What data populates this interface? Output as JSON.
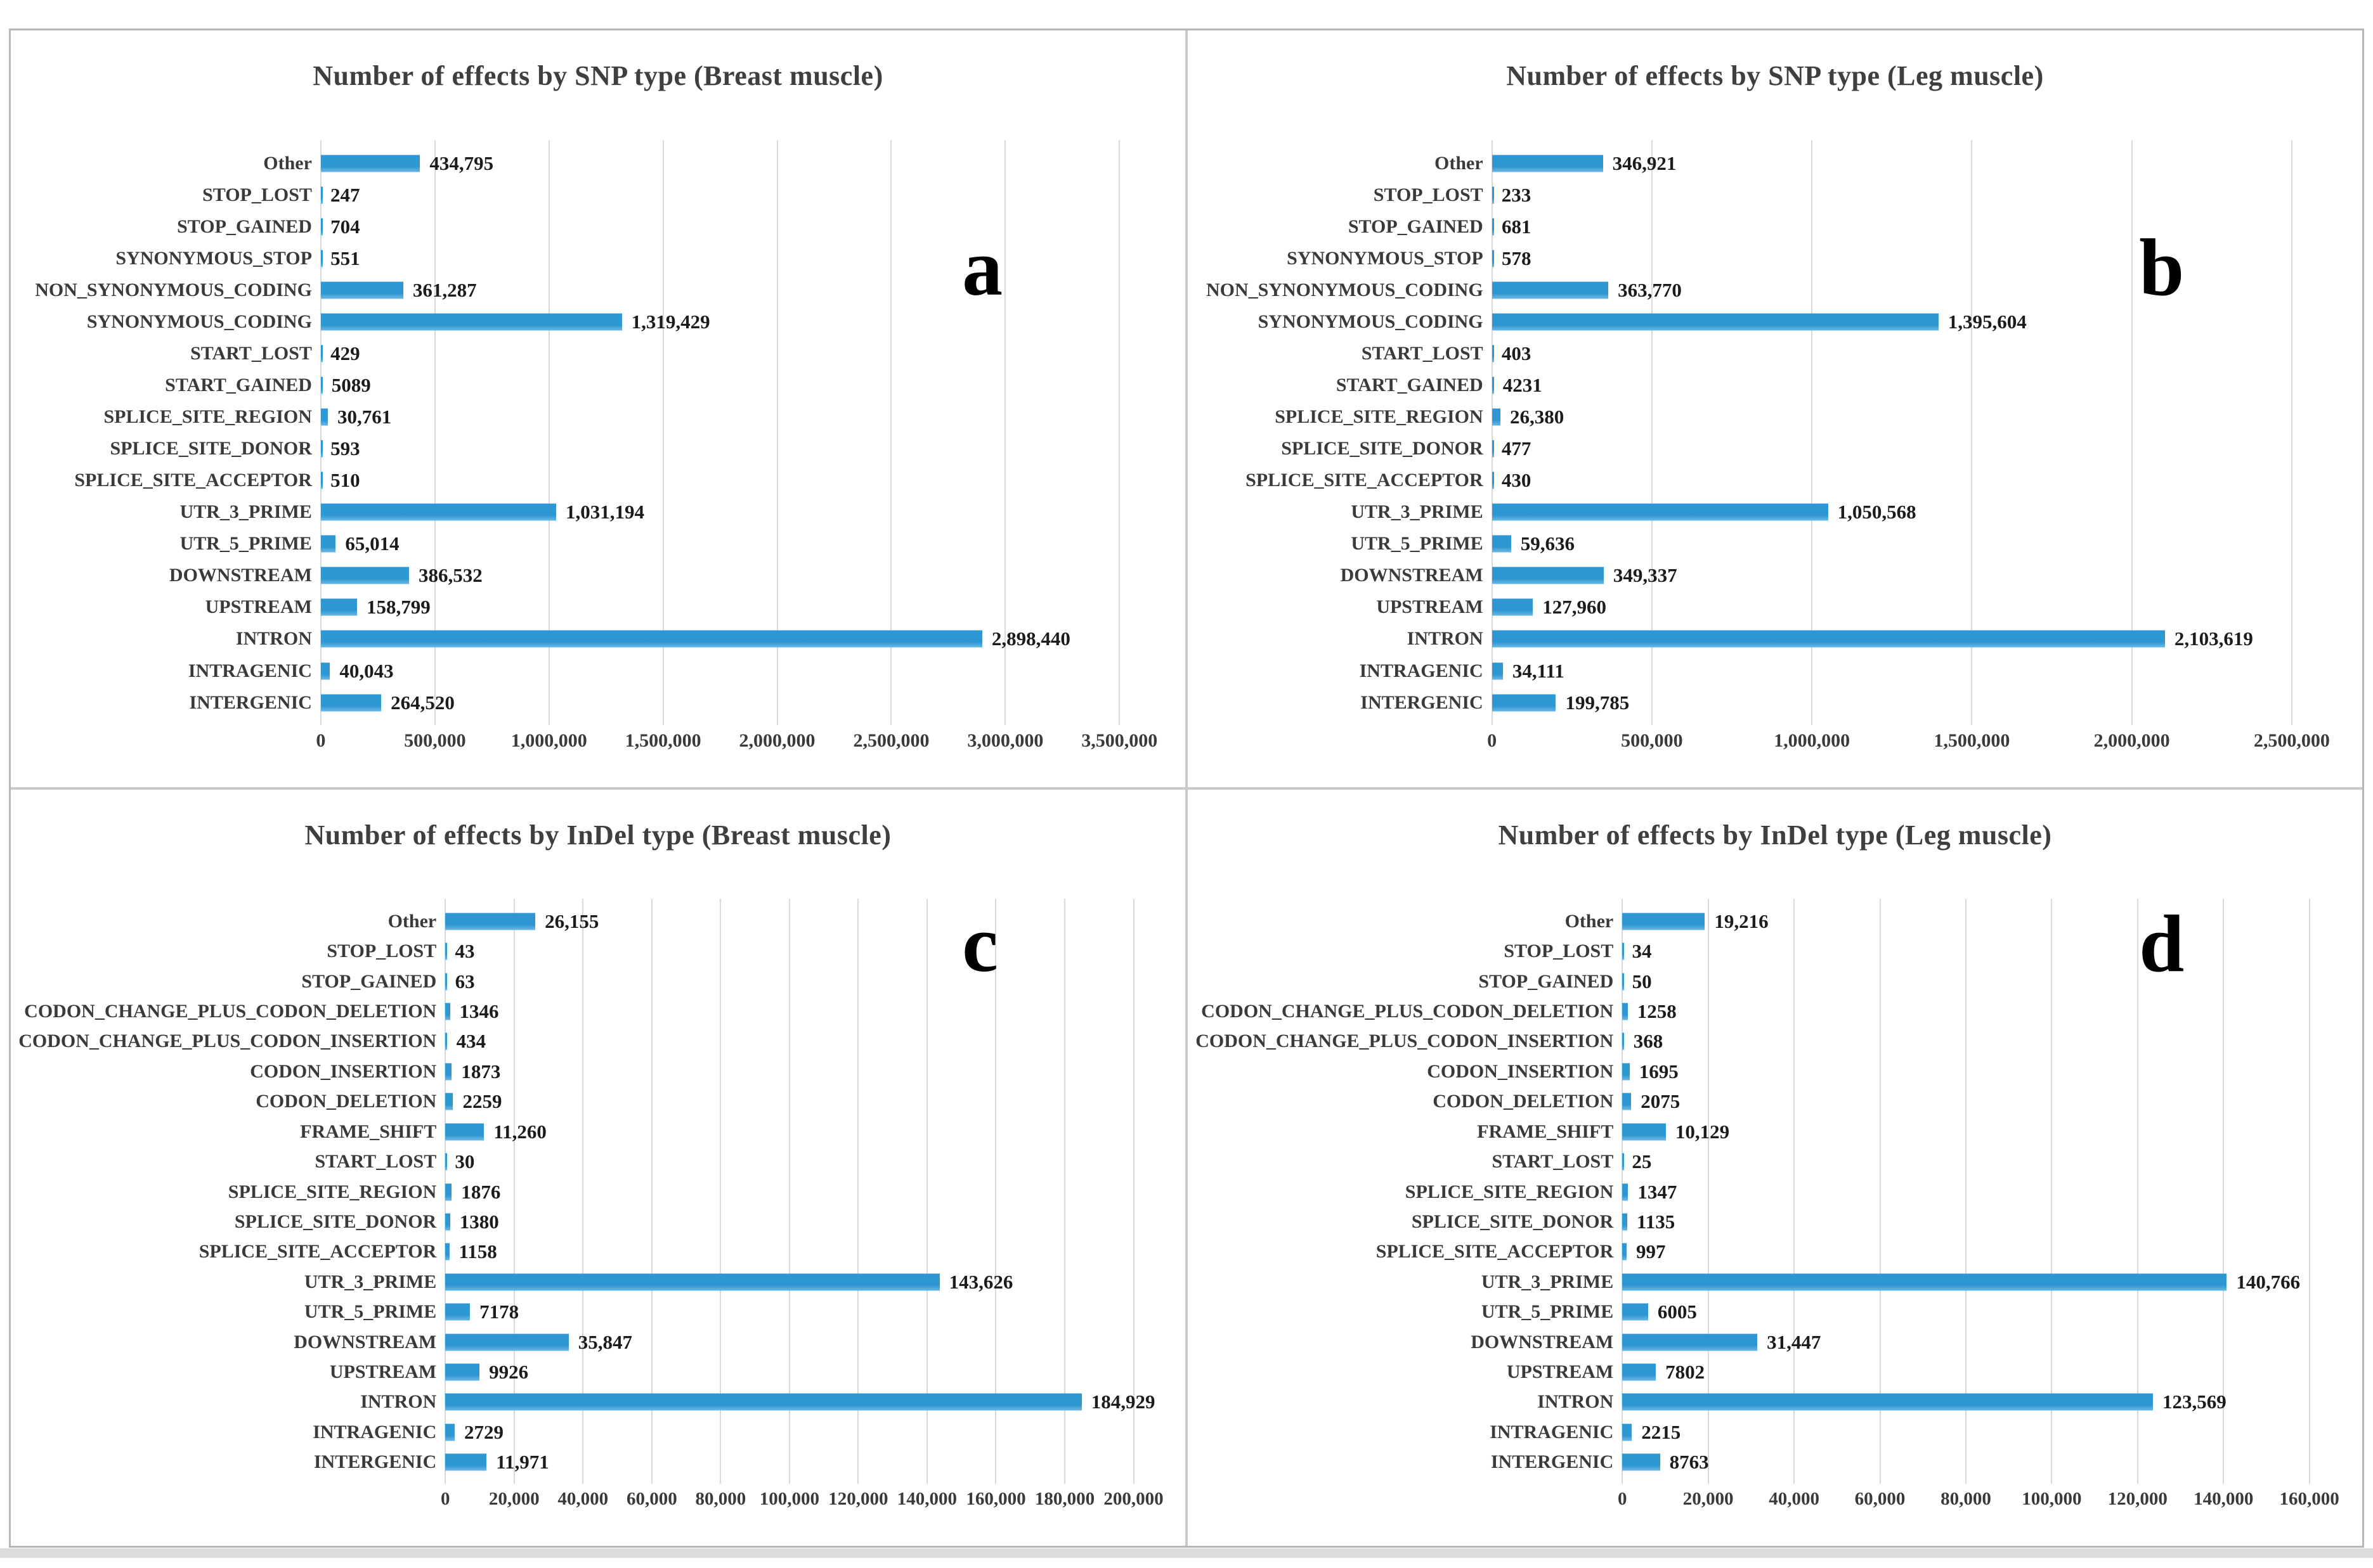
{
  "colors": {
    "bar": "#2E96D2",
    "gridline": "#D9D9D9",
    "title_text": "#3F3F3F",
    "value_text": "#1C1C1C"
  },
  "chart_data": [
    {
      "type": "bar",
      "orientation": "horizontal",
      "grid": true,
      "title": "Number of effects by SNP type (Breast muscle)",
      "letter": "a",
      "xlim": [
        0,
        3500000
      ],
      "axis": {
        "max": 3500000,
        "zero_pct": 26.4,
        "max_pct": 94.4,
        "ticks": [
          {
            "label": "0",
            "value": 0
          },
          {
            "label": "500,000",
            "value": 500000
          },
          {
            "label": "1,000,000",
            "value": 1000000
          },
          {
            "label": "1,500,000",
            "value": 1500000
          },
          {
            "label": "2,000,000",
            "value": 2000000
          },
          {
            "label": "2,500,000",
            "value": 2500000
          },
          {
            "label": "3,000,000",
            "value": 3000000
          },
          {
            "label": "3,500,000",
            "value": 3500000
          }
        ]
      },
      "rows": [
        {
          "label": "Other",
          "value": 434795,
          "display": "434,795"
        },
        {
          "label": "STOP_LOST",
          "value": 247,
          "display": "247"
        },
        {
          "label": "STOP_GAINED",
          "value": 704,
          "display": "704"
        },
        {
          "label": "SYNONYMOUS_STOP",
          "value": 551,
          "display": "551"
        },
        {
          "label": "NON_SYNONYMOUS_CODING",
          "value": 361287,
          "display": "361,287"
        },
        {
          "label": "SYNONYMOUS_CODING",
          "value": 1319429,
          "display": "1,319,429"
        },
        {
          "label": "START_LOST",
          "value": 429,
          "display": "429"
        },
        {
          "label": "START_GAINED",
          "value": 5089,
          "display": "5089"
        },
        {
          "label": "SPLICE_SITE_REGION",
          "value": 30761,
          "display": "30,761"
        },
        {
          "label": "SPLICE_SITE_DONOR",
          "value": 593,
          "display": "593"
        },
        {
          "label": "SPLICE_SITE_ACCEPTOR",
          "value": 510,
          "display": "510"
        },
        {
          "label": "UTR_3_PRIME",
          "value": 1031194,
          "display": "1,031,194"
        },
        {
          "label": "UTR_5_PRIME",
          "value": 65014,
          "display": "65,014"
        },
        {
          "label": "DOWNSTREAM",
          "value": 386532,
          "display": "386,532"
        },
        {
          "label": "UPSTREAM",
          "value": 158799,
          "display": "158,799"
        },
        {
          "label": "INTRON",
          "value": 2898440,
          "display": "2,898,440"
        },
        {
          "label": "INTRAGENIC",
          "value": 40043,
          "display": "40,043"
        },
        {
          "label": "INTERGENIC",
          "value": 264520,
          "display": "264,520"
        }
      ]
    },
    {
      "type": "bar",
      "orientation": "horizontal",
      "grid": true,
      "title": "Number of effects by SNP type (Leg muscle)",
      "letter": "b",
      "xlim": [
        0,
        2500000
      ],
      "axis": {
        "max": 2500000,
        "zero_pct": 25.9,
        "max_pct": 94.0,
        "ticks": [
          {
            "label": "0",
            "value": 0
          },
          {
            "label": "500,000",
            "value": 500000
          },
          {
            "label": "1,000,000",
            "value": 1000000
          },
          {
            "label": "1,500,000",
            "value": 1500000
          },
          {
            "label": "2,000,000",
            "value": 2000000
          },
          {
            "label": "2,500,000",
            "value": 2500000
          }
        ]
      },
      "rows": [
        {
          "label": "Other",
          "value": 346921,
          "display": "346,921"
        },
        {
          "label": "STOP_LOST",
          "value": 233,
          "display": "233"
        },
        {
          "label": "STOP_GAINED",
          "value": 681,
          "display": "681"
        },
        {
          "label": "SYNONYMOUS_STOP",
          "value": 578,
          "display": "578"
        },
        {
          "label": "NON_SYNONYMOUS_CODING",
          "value": 363770,
          "display": "363,770"
        },
        {
          "label": "SYNONYMOUS_CODING",
          "value": 1395604,
          "display": "1,395,604"
        },
        {
          "label": "START_LOST",
          "value": 403,
          "display": "403"
        },
        {
          "label": "START_GAINED",
          "value": 4231,
          "display": "4231"
        },
        {
          "label": "SPLICE_SITE_REGION",
          "value": 26380,
          "display": "26,380"
        },
        {
          "label": "SPLICE_SITE_DONOR",
          "value": 477,
          "display": "477"
        },
        {
          "label": "SPLICE_SITE_ACCEPTOR",
          "value": 430,
          "display": "430"
        },
        {
          "label": "UTR_3_PRIME",
          "value": 1050568,
          "display": "1,050,568"
        },
        {
          "label": "UTR_5_PRIME",
          "value": 59636,
          "display": "59,636"
        },
        {
          "label": "DOWNSTREAM",
          "value": 349337,
          "display": "349,337"
        },
        {
          "label": "UPSTREAM",
          "value": 127960,
          "display": "127,960"
        },
        {
          "label": "INTRON",
          "value": 2103619,
          "display": "2,103,619"
        },
        {
          "label": "INTRAGENIC",
          "value": 34111,
          "display": "34,111"
        },
        {
          "label": "INTERGENIC",
          "value": 199785,
          "display": "199,785"
        }
      ]
    },
    {
      "type": "bar",
      "orientation": "horizontal",
      "grid": true,
      "title": "Number of effects by InDel type (Breast muscle)",
      "letter": "c",
      "xlim": [
        0,
        200000
      ],
      "axis": {
        "max": 200000,
        "zero_pct": 37.0,
        "max_pct": 95.6,
        "ticks": [
          {
            "label": "0",
            "value": 0
          },
          {
            "label": "20,000",
            "value": 20000
          },
          {
            "label": "40,000",
            "value": 40000
          },
          {
            "label": "60,000",
            "value": 60000
          },
          {
            "label": "80,000",
            "value": 80000
          },
          {
            "label": "100,000",
            "value": 100000
          },
          {
            "label": "120,000",
            "value": 120000
          },
          {
            "label": "140,000",
            "value": 140000
          },
          {
            "label": "160,000",
            "value": 160000
          },
          {
            "label": "180,000",
            "value": 180000
          },
          {
            "label": "200,000",
            "value": 200000
          }
        ]
      },
      "rows": [
        {
          "label": "Other",
          "value": 26155,
          "display": "26,155"
        },
        {
          "label": "STOP_LOST",
          "value": 43,
          "display": "43"
        },
        {
          "label": "STOP_GAINED",
          "value": 63,
          "display": "63"
        },
        {
          "label": "CODON_CHANGE_PLUS_CODON_DELETION",
          "value": 1346,
          "display": "1346"
        },
        {
          "label": "CODON_CHANGE_PLUS_CODON_INSERTION",
          "value": 434,
          "display": "434"
        },
        {
          "label": "CODON_INSERTION",
          "value": 1873,
          "display": "1873"
        },
        {
          "label": "CODON_DELETION",
          "value": 2259,
          "display": "2259"
        },
        {
          "label": "FRAME_SHIFT",
          "value": 11260,
          "display": "11,260"
        },
        {
          "label": "START_LOST",
          "value": 30,
          "display": "30"
        },
        {
          "label": "SPLICE_SITE_REGION",
          "value": 1876,
          "display": "1876"
        },
        {
          "label": "SPLICE_SITE_DONOR",
          "value": 1380,
          "display": "1380"
        },
        {
          "label": "SPLICE_SITE_ACCEPTOR",
          "value": 1158,
          "display": "1158"
        },
        {
          "label": "UTR_3_PRIME",
          "value": 143626,
          "display": "143,626"
        },
        {
          "label": "UTR_5_PRIME",
          "value": 7178,
          "display": "7178"
        },
        {
          "label": "DOWNSTREAM",
          "value": 35847,
          "display": "35,847"
        },
        {
          "label": "UPSTREAM",
          "value": 9926,
          "display": "9926"
        },
        {
          "label": "INTRON",
          "value": 184929,
          "display": "184,929"
        },
        {
          "label": "INTRAGENIC",
          "value": 2729,
          "display": "2729"
        },
        {
          "label": "INTERGENIC",
          "value": 11971,
          "display": "11,971"
        }
      ]
    },
    {
      "type": "bar",
      "orientation": "horizontal",
      "grid": true,
      "title": "Number of effects by InDel type (Leg muscle)",
      "letter": "d",
      "xlim": [
        0,
        160000
      ],
      "axis": {
        "max": 160000,
        "zero_pct": 37.0,
        "max_pct": 95.5,
        "ticks": [
          {
            "label": "0",
            "value": 0
          },
          {
            "label": "20,000",
            "value": 20000
          },
          {
            "label": "40,000",
            "value": 40000
          },
          {
            "label": "60,000",
            "value": 60000
          },
          {
            "label": "80,000",
            "value": 80000
          },
          {
            "label": "100,000",
            "value": 100000
          },
          {
            "label": "120,000",
            "value": 120000
          },
          {
            "label": "140,000",
            "value": 140000
          },
          {
            "label": "160,000",
            "value": 160000
          }
        ]
      },
      "rows": [
        {
          "label": "Other",
          "value": 19216,
          "display": "19,216"
        },
        {
          "label": "STOP_LOST",
          "value": 34,
          "display": "34"
        },
        {
          "label": "STOP_GAINED",
          "value": 50,
          "display": "50"
        },
        {
          "label": "CODON_CHANGE_PLUS_CODON_DELETION",
          "value": 1258,
          "display": "1258"
        },
        {
          "label": "CODON_CHANGE_PLUS_CODON_INSERTION",
          "value": 368,
          "display": "368"
        },
        {
          "label": "CODON_INSERTION",
          "value": 1695,
          "display": "1695"
        },
        {
          "label": "CODON_DELETION",
          "value": 2075,
          "display": "2075"
        },
        {
          "label": "FRAME_SHIFT",
          "value": 10129,
          "display": "10,129"
        },
        {
          "label": "START_LOST",
          "value": 25,
          "display": "25"
        },
        {
          "label": "SPLICE_SITE_REGION",
          "value": 1347,
          "display": "1347"
        },
        {
          "label": "SPLICE_SITE_DONOR",
          "value": 1135,
          "display": "1135"
        },
        {
          "label": "SPLICE_SITE_ACCEPTOR",
          "value": 997,
          "display": "997"
        },
        {
          "label": "UTR_3_PRIME",
          "value": 140766,
          "display": "140,766"
        },
        {
          "label": "UTR_5_PRIME",
          "value": 6005,
          "display": "6005"
        },
        {
          "label": "DOWNSTREAM",
          "value": 31447,
          "display": "31,447"
        },
        {
          "label": "UPSTREAM",
          "value": 7802,
          "display": "7802"
        },
        {
          "label": "INTRON",
          "value": 123569,
          "display": "123,569"
        },
        {
          "label": "INTRAGENIC",
          "value": 2215,
          "display": "2215"
        },
        {
          "label": "INTERGENIC",
          "value": 8763,
          "display": "8763"
        }
      ]
    }
  ]
}
